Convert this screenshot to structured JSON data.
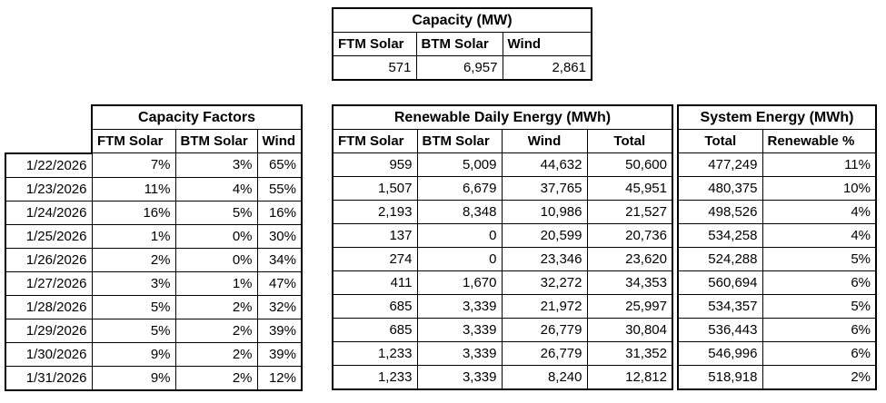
{
  "colors": {
    "background": "#ffffff",
    "text": "#000000",
    "border": "#000000"
  },
  "dates": [
    "1/22/2026",
    "1/23/2026",
    "1/24/2026",
    "1/25/2026",
    "1/26/2026",
    "1/27/2026",
    "1/28/2026",
    "1/29/2026",
    "1/30/2026",
    "1/31/2026"
  ],
  "chart_data": [
    {
      "type": "table",
      "title": "Capacity (MW)",
      "columns": [
        "FTM Solar",
        "BTM Solar",
        "Wind"
      ],
      "rows": [
        [
          "571",
          "6,957",
          "2,861"
        ]
      ]
    },
    {
      "type": "table",
      "title": "Capacity Factors",
      "columns": [
        "FTM Solar",
        "BTM Solar",
        "Wind"
      ],
      "rows": [
        [
          "7%",
          "3%",
          "65%"
        ],
        [
          "11%",
          "4%",
          "55%"
        ],
        [
          "16%",
          "5%",
          "16%"
        ],
        [
          "1%",
          "0%",
          "30%"
        ],
        [
          "2%",
          "0%",
          "34%"
        ],
        [
          "3%",
          "1%",
          "47%"
        ],
        [
          "5%",
          "2%",
          "32%"
        ],
        [
          "5%",
          "2%",
          "39%"
        ],
        [
          "9%",
          "2%",
          "39%"
        ],
        [
          "9%",
          "2%",
          "12%"
        ]
      ]
    },
    {
      "type": "table",
      "title": "Renewable Daily Energy (MWh)",
      "columns": [
        "FTM Solar",
        "BTM Solar",
        "Wind",
        "Total"
      ],
      "rows": [
        [
          "959",
          "5,009",
          "44,632",
          "50,600"
        ],
        [
          "1,507",
          "6,679",
          "37,765",
          "45,951"
        ],
        [
          "2,193",
          "8,348",
          "10,986",
          "21,527"
        ],
        [
          "137",
          "0",
          "20,599",
          "20,736"
        ],
        [
          "274",
          "0",
          "23,346",
          "23,620"
        ],
        [
          "411",
          "1,670",
          "32,272",
          "34,353"
        ],
        [
          "685",
          "3,339",
          "21,972",
          "25,997"
        ],
        [
          "685",
          "3,339",
          "26,779",
          "30,804"
        ],
        [
          "1,233",
          "3,339",
          "26,779",
          "31,352"
        ],
        [
          "1,233",
          "3,339",
          "8,240",
          "12,812"
        ]
      ]
    },
    {
      "type": "table",
      "title": "System Energy (MWh)",
      "columns": [
        "Total",
        "Renewable %"
      ],
      "rows": [
        [
          "477,249",
          "11%"
        ],
        [
          "480,375",
          "10%"
        ],
        [
          "498,526",
          "4%"
        ],
        [
          "534,258",
          "4%"
        ],
        [
          "524,288",
          "5%"
        ],
        [
          "560,694",
          "6%"
        ],
        [
          "534,357",
          "5%"
        ],
        [
          "536,443",
          "6%"
        ],
        [
          "546,996",
          "6%"
        ],
        [
          "518,918",
          "2%"
        ]
      ]
    }
  ]
}
